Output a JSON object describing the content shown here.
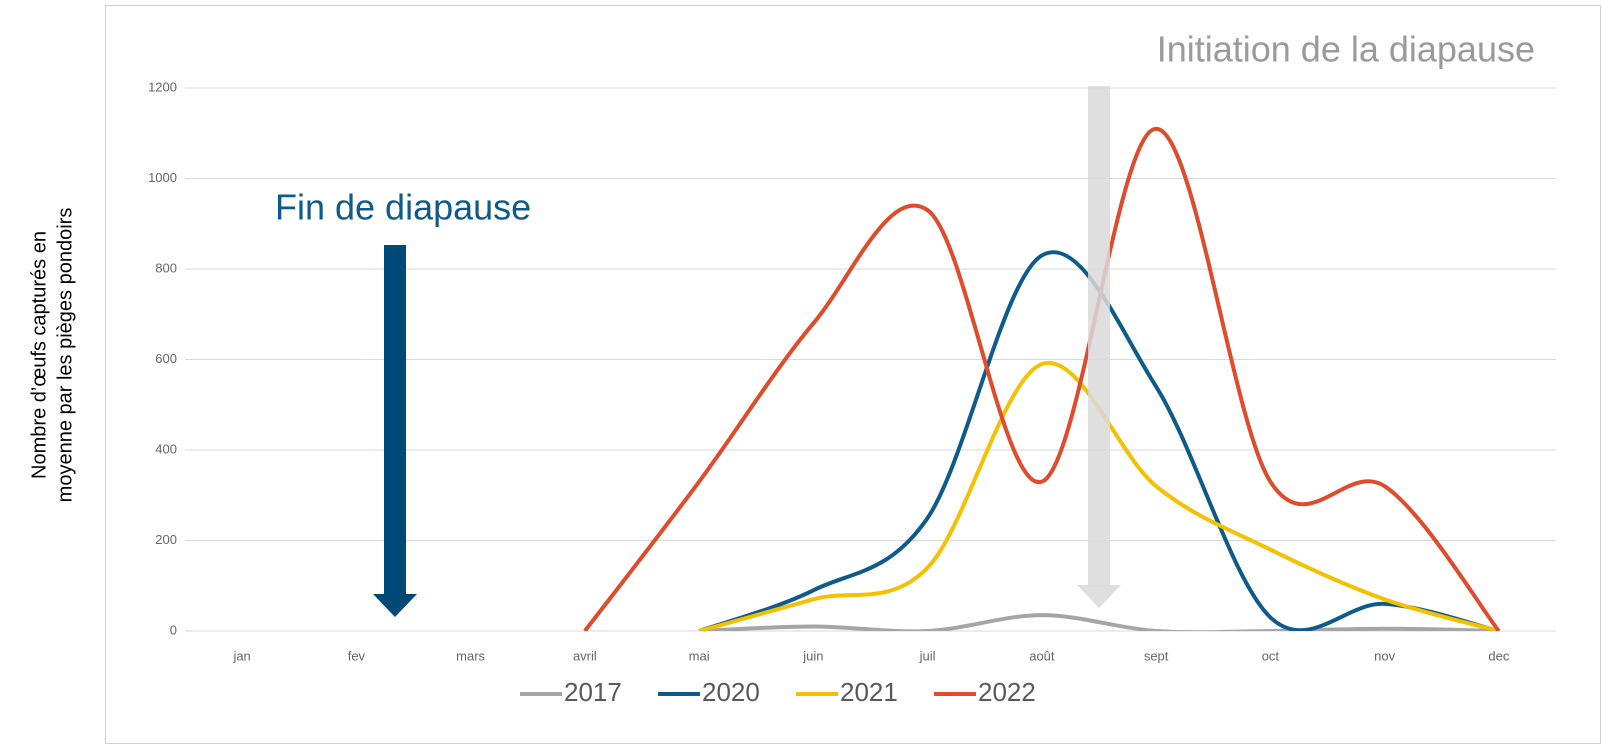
{
  "chart_data": {
    "type": "line",
    "y_label_lines": [
      "Nombre d’œufs capturés en",
      "moyenne par les pièges pondoirs"
    ],
    "annotations": [
      "Fin de diapause",
      "Initiation de la diapause"
    ],
    "categories": [
      "jan",
      "fev",
      "mars",
      "avril",
      "mai",
      "juin",
      "juil",
      "août",
      "sept",
      "oct",
      "nov",
      "dec"
    ],
    "series": [
      {
        "name": "2017",
        "color": "#a5a5a5",
        "values": [
          null,
          null,
          null,
          null,
          0,
          10,
          0,
          35,
          0,
          0,
          5,
          0
        ]
      },
      {
        "name": "2020",
        "color": "#0e5a8a",
        "values": [
          null,
          null,
          null,
          null,
          0,
          90,
          250,
          830,
          540,
          30,
          60,
          0
        ]
      },
      {
        "name": "2021",
        "color": "#f5c000",
        "values": [
          null,
          null,
          null,
          null,
          0,
          70,
          140,
          590,
          320,
          180,
          70,
          0
        ]
      },
      {
        "name": "2022",
        "color": "#e04b2b",
        "values": [
          null,
          null,
          null,
          0,
          330,
          680,
          930,
          330,
          1110,
          330,
          320,
          0
        ]
      }
    ],
    "ylim": [
      0,
      1200
    ],
    "yticks": [
      0,
      200,
      400,
      600,
      800,
      1000,
      1200
    ],
    "grid": true,
    "legend": "bottom"
  }
}
